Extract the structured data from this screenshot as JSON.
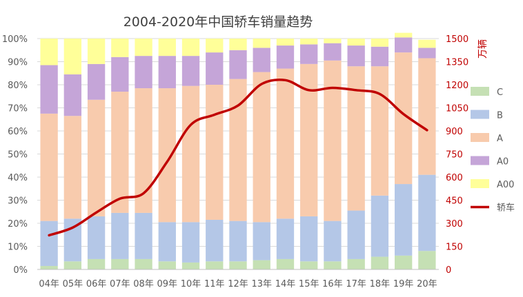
{
  "chart_data": {
    "type": "bar",
    "stacked_percent": true,
    "title": "2004-2020年中国轿车销量趋势",
    "right_axis_unit": "万辆",
    "categories": [
      "04年",
      "05年",
      "06年",
      "07年",
      "08年",
      "09年",
      "10年",
      "11年",
      "12年",
      "13年",
      "14年",
      "15年",
      "16年",
      "17年",
      "18年",
      "19年",
      "20年"
    ],
    "y_left": {
      "range": [
        0,
        100
      ],
      "ticks": [
        "0%",
        "10%",
        "20%",
        "30%",
        "40%",
        "50%",
        "60%",
        "70%",
        "80%",
        "90%",
        "100%"
      ]
    },
    "y_right": {
      "range": [
        0,
        1500
      ],
      "ticks": [
        "0",
        "150",
        "300",
        "450",
        "600",
        "750",
        "900",
        "1050",
        "1200",
        "1350",
        "1500"
      ]
    },
    "series": [
      {
        "name": "C",
        "color": "#c5e0b4",
        "values": [
          1.5,
          3.5,
          4.5,
          4.5,
          4.5,
          3.5,
          3,
          3.5,
          3.5,
          4,
          4.5,
          3.5,
          3.5,
          4.5,
          5.5,
          6,
          8
        ]
      },
      {
        "name": "B",
        "color": "#b4c7e7",
        "values": [
          19.5,
          18.5,
          18.5,
          20,
          20,
          17,
          17.5,
          18,
          17.5,
          16.5,
          17.5,
          19.5,
          17.5,
          21,
          26.5,
          31,
          33
        ]
      },
      {
        "name": "A",
        "color": "#f8cbad",
        "values": [
          46.5,
          44.5,
          50.5,
          52.5,
          54,
          58,
          59,
          58.5,
          61.5,
          65,
          65,
          66,
          69.5,
          62.5,
          56,
          57,
          50.5
        ]
      },
      {
        "name": "A0",
        "color": "#c5a5d8",
        "values": [
          21,
          18,
          15.5,
          15,
          14,
          14,
          13,
          14,
          12.5,
          10.5,
          10,
          8.5,
          7.5,
          9,
          8.5,
          6.5,
          4.5
        ]
      },
      {
        "name": "A00",
        "color": "#ffff99",
        "values": [
          11.5,
          15.5,
          11,
          8,
          7.5,
          7.5,
          7.5,
          6,
          5,
          4,
          3,
          2.5,
          2,
          3,
          3.5,
          2,
          3.5
        ]
      }
    ],
    "line": {
      "name": "轿车",
      "color": "#c00000",
      "values": [
        222,
        272,
        370,
        460,
        495,
        700,
        940,
        1005,
        1065,
        1205,
        1230,
        1165,
        1180,
        1165,
        1140,
        1010,
        905
      ]
    },
    "legend_placement": "right"
  }
}
